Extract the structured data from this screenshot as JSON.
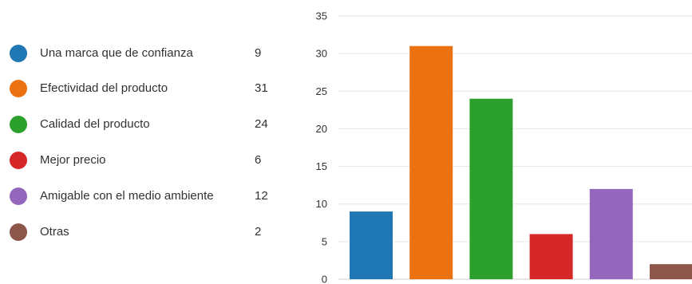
{
  "chart_data": {
    "type": "bar",
    "categories": [
      "Una marca que de confianza",
      "Efectividad del producto",
      "Calidad del producto",
      "Mejor precio",
      "Amigable con el medio ambiente",
      "Otras"
    ],
    "values": [
      9,
      31,
      24,
      6,
      12,
      2
    ],
    "colors": [
      "#1f77b4",
      "#ec7211",
      "#2ca02c",
      "#d62728",
      "#9467bd",
      "#8c564b"
    ],
    "ylim": [
      0,
      35
    ],
    "yticks": [
      0,
      5,
      10,
      15,
      20,
      25,
      30,
      35
    ],
    "grid": true,
    "legend_position": "left"
  },
  "legend": {
    "items": [
      {
        "label": "Una marca que de confianza",
        "count": "9"
      },
      {
        "label": "Efectividad del producto",
        "count": "31"
      },
      {
        "label": "Calidad del producto",
        "count": "24"
      },
      {
        "label": "Mejor precio",
        "count": "6"
      },
      {
        "label": "Amigable con el medio ambiente",
        "count": "12"
      },
      {
        "label": "Otras",
        "count": "2"
      }
    ]
  }
}
